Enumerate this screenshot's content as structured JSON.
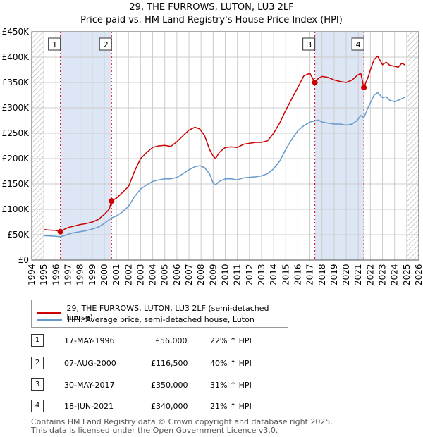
{
  "header": {
    "title": "29, THE FURROWS, LUTON, LU3 2LF",
    "subtitle": "Price paid vs. HM Land Registry's House Price Index (HPI)"
  },
  "legend": {
    "property_label": "29, THE FURROWS, LUTON, LU3 2LF (semi-detached house)",
    "hpi_label": "HPI: Average price, semi-detached house, Luton"
  },
  "colors": {
    "property": "#cc0000",
    "hpi": "#6699cc",
    "shade": "#dde6f4",
    "grid": "#cccccc"
  },
  "sales": [
    {
      "num": "1",
      "date": "17-MAY-1996",
      "price": "£56,000",
      "hpi": "22% ↑ HPI"
    },
    {
      "num": "2",
      "date": "07-AUG-2000",
      "price": "£116,500",
      "hpi": "40% ↑ HPI"
    },
    {
      "num": "3",
      "date": "30-MAY-2017",
      "price": "£350,000",
      "hpi": "31% ↑ HPI"
    },
    {
      "num": "4",
      "date": "18-JUN-2021",
      "price": "£340,000",
      "hpi": "21% ↑ HPI"
    }
  ],
  "footer": {
    "line1": "Contains HM Land Registry data © Crown copyright and database right 2025.",
    "line2": "This data is licensed under the Open Government Licence v3.0."
  },
  "chart_data": {
    "type": "line",
    "title": "29, THE FURROWS, LUTON, LU3 2LF",
    "subtitle": "Price paid vs. HM Land Registry's House Price Index (HPI)",
    "xlabel": "",
    "ylabel": "",
    "xlim": [
      1994,
      2026
    ],
    "ylim": [
      0,
      450000
    ],
    "x_ticks": [
      1994,
      1995,
      1996,
      1997,
      1998,
      1999,
      2000,
      2001,
      2002,
      2003,
      2004,
      2005,
      2006,
      2007,
      2008,
      2009,
      2010,
      2011,
      2012,
      2013,
      2014,
      2015,
      2016,
      2017,
      2018,
      2019,
      2020,
      2021,
      2022,
      2023,
      2024,
      2025,
      2026
    ],
    "y_ticks": [
      0,
      50000,
      100000,
      150000,
      200000,
      250000,
      300000,
      350000,
      400000,
      450000
    ],
    "y_tick_labels": [
      "£0",
      "£50K",
      "£100K",
      "£150K",
      "£200K",
      "£250K",
      "£300K",
      "£350K",
      "£400K",
      "£450K"
    ],
    "grid": true,
    "legend_position": "bottom",
    "shaded_ranges": [
      [
        1996.37,
        2000.6
      ],
      [
        2017.41,
        2021.46
      ]
    ],
    "hatched_ranges": [
      [
        1994,
        1995
      ],
      [
        2025,
        2026
      ]
    ],
    "series": [
      {
        "name": "29, THE FURROWS, LUTON, LU3 2LF (semi-detached house)",
        "color": "#cc0000",
        "x": [
          1995.0,
          1995.5,
          1996.0,
          1996.37,
          1996.8,
          1997.0,
          1997.5,
          1998.0,
          1998.5,
          1999.0,
          1999.5,
          2000.0,
          2000.4,
          2000.6,
          2001.0,
          2001.5,
          2002.0,
          2002.5,
          2003.0,
          2003.5,
          2004.0,
          2004.5,
          2005.0,
          2005.5,
          2006.0,
          2006.5,
          2007.0,
          2007.5,
          2007.9,
          2008.3,
          2008.7,
          2009.0,
          2009.2,
          2009.5,
          2010.0,
          2010.5,
          2011.0,
          2011.5,
          2012.0,
          2012.5,
          2013.0,
          2013.5,
          2014.0,
          2014.5,
          2015.0,
          2015.5,
          2016.0,
          2016.5,
          2017.0,
          2017.41,
          2017.7,
          2018.0,
          2018.5,
          2019.0,
          2019.5,
          2020.0,
          2020.5,
          2020.9,
          2021.2,
          2021.46,
          2021.8,
          2022.0,
          2022.3,
          2022.6,
          2023.0,
          2023.3,
          2023.6,
          2024.0,
          2024.3,
          2024.6,
          2024.9
        ],
        "y": [
          60000,
          59000,
          58500,
          56000,
          62000,
          64000,
          67000,
          70000,
          72000,
          75000,
          80000,
          90000,
          100000,
          116500,
          122000,
          133000,
          145000,
          175000,
          200000,
          212000,
          222000,
          225000,
          226000,
          224000,
          233000,
          245000,
          256000,
          262000,
          258000,
          245000,
          218000,
          205000,
          200000,
          212000,
          222000,
          223000,
          222000,
          228000,
          230000,
          232000,
          232000,
          235000,
          250000,
          270000,
          295000,
          318000,
          340000,
          363000,
          368000,
          350000,
          358000,
          362000,
          360000,
          355000,
          352000,
          350000,
          355000,
          364000,
          368000,
          340000,
          360000,
          375000,
          395000,
          402000,
          385000,
          390000,
          384000,
          382000,
          380000,
          388000,
          384000
        ]
      },
      {
        "name": "HPI: Average price, semi-detached house, Luton",
        "color": "#6699cc",
        "x": [
          1995.0,
          1995.5,
          1996.0,
          1996.37,
          1996.8,
          1997.0,
          1997.5,
          1998.0,
          1998.5,
          1999.0,
          1999.5,
          2000.0,
          2000.6,
          2001.0,
          2001.5,
          2002.0,
          2002.5,
          2003.0,
          2003.5,
          2004.0,
          2004.5,
          2005.0,
          2005.5,
          2006.0,
          2006.5,
          2007.0,
          2007.5,
          2007.9,
          2008.3,
          2008.7,
          2009.0,
          2009.2,
          2009.5,
          2010.0,
          2010.5,
          2011.0,
          2011.5,
          2012.0,
          2012.5,
          2013.0,
          2013.5,
          2014.0,
          2014.5,
          2015.0,
          2015.5,
          2016.0,
          2016.5,
          2017.0,
          2017.41,
          2017.7,
          2018.0,
          2018.5,
          2019.0,
          2019.5,
          2020.0,
          2020.5,
          2020.9,
          2021.2,
          2021.46,
          2021.8,
          2022.0,
          2022.3,
          2022.6,
          2023.0,
          2023.3,
          2023.6,
          2024.0,
          2024.3,
          2024.6,
          2024.9
        ],
        "y": [
          48000,
          47500,
          47000,
          46000,
          49000,
          51000,
          54000,
          56000,
          58000,
          61000,
          65000,
          72000,
          83000,
          87000,
          95000,
          106000,
          125000,
          140000,
          148000,
          155000,
          158000,
          160000,
          160000,
          163000,
          170000,
          178000,
          184000,
          186000,
          182000,
          170000,
          152000,
          148000,
          155000,
          160000,
          160000,
          158000,
          162000,
          163000,
          164000,
          166000,
          170000,
          180000,
          195000,
          218000,
          238000,
          255000,
          265000,
          272000,
          274000,
          276000,
          272000,
          270000,
          268000,
          268000,
          266000,
          268000,
          275000,
          285000,
          280000,
          300000,
          310000,
          325000,
          330000,
          320000,
          322000,
          315000,
          312000,
          315000,
          318000,
          322000
        ]
      }
    ],
    "markers": [
      {
        "label": "1",
        "x": 1996.37,
        "y": 56000
      },
      {
        "label": "2",
        "x": 2000.6,
        "y": 116500
      },
      {
        "label": "3",
        "x": 2017.41,
        "y": 350000
      },
      {
        "label": "4",
        "x": 2021.46,
        "y": 340000
      }
    ]
  }
}
